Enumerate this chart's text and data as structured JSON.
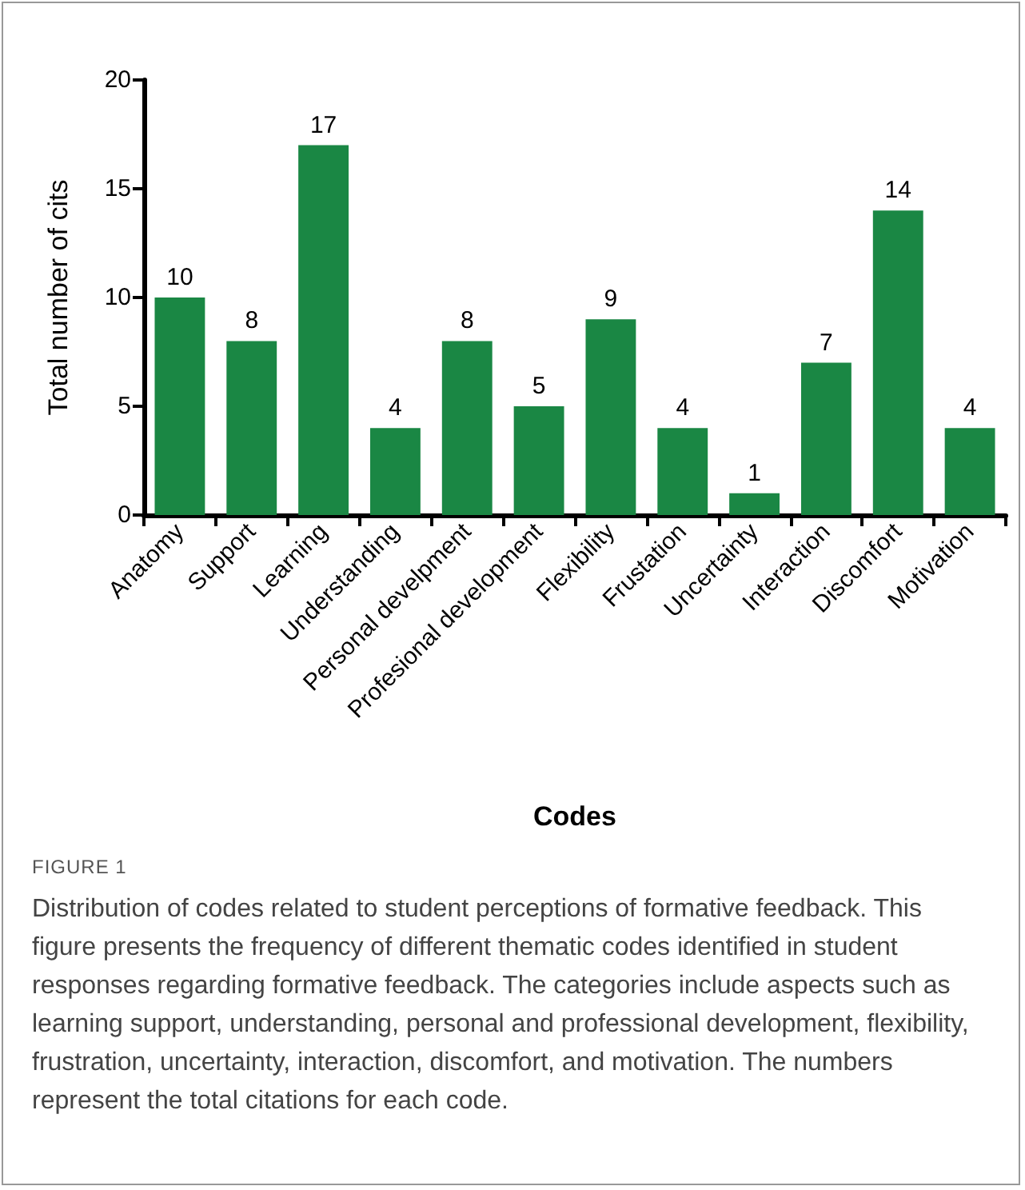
{
  "chart_data": {
    "type": "bar",
    "categories": [
      "Anatomy",
      "Support",
      "Learning",
      "Understanding",
      "Personal develpment",
      "Profesional development",
      "Flexibility",
      "Frustation",
      "Uncertainty",
      "Interaction",
      "Discomfort",
      "Motivation"
    ],
    "values": [
      10,
      8,
      17,
      4,
      8,
      5,
      9,
      4,
      1,
      7,
      14,
      4
    ],
    "color": "#1a8744",
    "xlabel": "Codes",
    "ylabel": "Total number of cits",
    "ylim": [
      0,
      20
    ],
    "yticks": [
      0,
      5,
      10,
      15,
      20
    ],
    "data_labels": true,
    "grid": false,
    "annotations": [
      "FIGURE 1",
      "Distribution of codes related to student perceptions of formative feedback. This figure presents the frequency of different thematic codes identified in student responses regarding formative feedback. The categories include aspects such as learning support, understanding, personal and professional development, flexibility, frustration, uncertainty, interaction, discomfort, and motivation. The numbers represent the total citations for each code."
    ]
  }
}
